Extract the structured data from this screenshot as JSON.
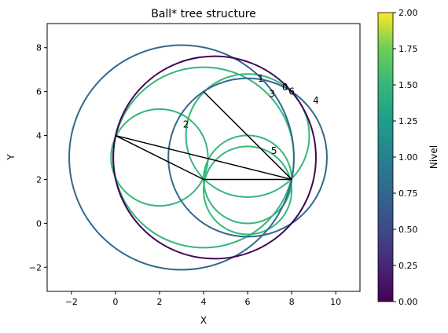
{
  "chart_data": {
    "type": "scatter",
    "title": "Ball* tree structure",
    "xlabel": "X",
    "ylabel": "Y",
    "xlim": [
      -3.1,
      11.1
    ],
    "ylim": [
      -3.1,
      9.1
    ],
    "xticks": [
      -2,
      0,
      2,
      4,
      6,
      8,
      10
    ],
    "yticks": [
      -2,
      0,
      2,
      4,
      6,
      8
    ],
    "grid": false,
    "colorbar": {
      "label": "Nivel",
      "range": [
        0,
        2
      ],
      "ticks": [
        "0.00",
        "0.25",
        "0.50",
        "0.75",
        "1.00",
        "1.25",
        "1.50",
        "1.75",
        "2.00"
      ],
      "colormap": "viridis"
    },
    "balls": [
      {
        "id": "0",
        "level": 0,
        "center": [
          4.5,
          3.0
        ],
        "radius": 4.6,
        "color": "#440154",
        "label_at": [
          7.7,
          6.2
        ]
      },
      {
        "id": "1",
        "level": 1,
        "center": [
          3.0,
          3.0
        ],
        "radius": 5.1,
        "color": "#31688e",
        "label_at": [
          6.6,
          6.6
        ]
      },
      {
        "id": "2",
        "level": 1,
        "center": [
          6.0,
          3.0
        ],
        "radius": 3.6,
        "color": "#31688e",
        "label_at": [
          3.2,
          4.5
        ]
      },
      {
        "id": "3",
        "level": 2,
        "center": [
          4.0,
          3.0
        ],
        "radius": 4.1,
        "color": "#35b779",
        "label_at": [
          7.1,
          5.9
        ]
      },
      {
        "id": "4",
        "level": 2,
        "center": [
          2.0,
          3.0
        ],
        "radius": 2.2,
        "color": "#35b779",
        "label_at": [
          9.1,
          5.6
        ]
      },
      {
        "id": "5",
        "level": 2,
        "center": [
          6.0,
          1.5
        ],
        "radius": 2.0,
        "color": "#35b779",
        "label_at": [
          7.2,
          3.3
        ]
      },
      {
        "id": "6",
        "level": 2,
        "center": [
          6.0,
          4.0
        ],
        "radius": 2.8,
        "color": "#35b779",
        "label_at": [
          8.0,
          6.0
        ]
      },
      {
        "id": "",
        "level": 2,
        "center": [
          6.0,
          2.0
        ],
        "radius": 2.0,
        "color": "#35b779"
      }
    ],
    "points": [
      [
        0,
        4
      ],
      [
        4,
        6
      ],
      [
        4,
        2
      ],
      [
        8,
        2
      ]
    ],
    "edges": [
      [
        [
          4,
          6
        ],
        [
          8,
          2
        ]
      ],
      [
        [
          0,
          4
        ],
        [
          8,
          2
        ]
      ],
      [
        [
          0,
          4
        ],
        [
          4,
          2
        ]
      ],
      [
        [
          4,
          2
        ],
        [
          8,
          2
        ]
      ]
    ]
  }
}
